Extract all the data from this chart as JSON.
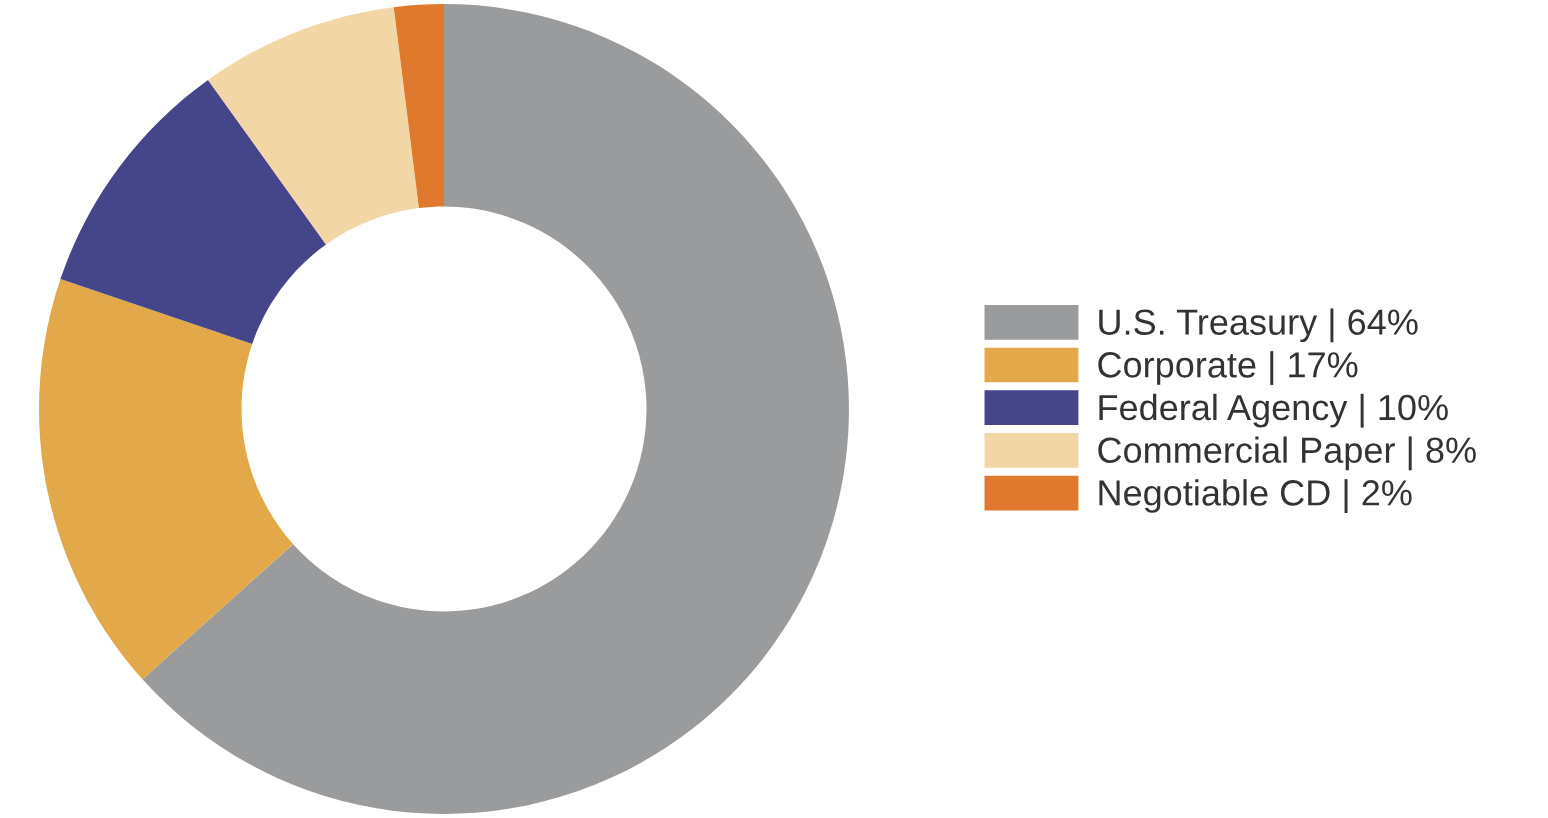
{
  "chart_data": {
    "type": "donut",
    "categories": [
      "U.S. Treasury | 64%",
      "Corporate | 17%",
      "Federal Agency | 10%",
      "Commercial Paper | 8%",
      "Negotiable CD | 2%"
    ],
    "values": [
      64,
      17,
      10,
      8,
      2
    ],
    "colors": [
      "#9a9b9d",
      "#e2a84a",
      "#45458a",
      "#f2d6a6",
      "#e0782e"
    ],
    "legend": "right"
  }
}
